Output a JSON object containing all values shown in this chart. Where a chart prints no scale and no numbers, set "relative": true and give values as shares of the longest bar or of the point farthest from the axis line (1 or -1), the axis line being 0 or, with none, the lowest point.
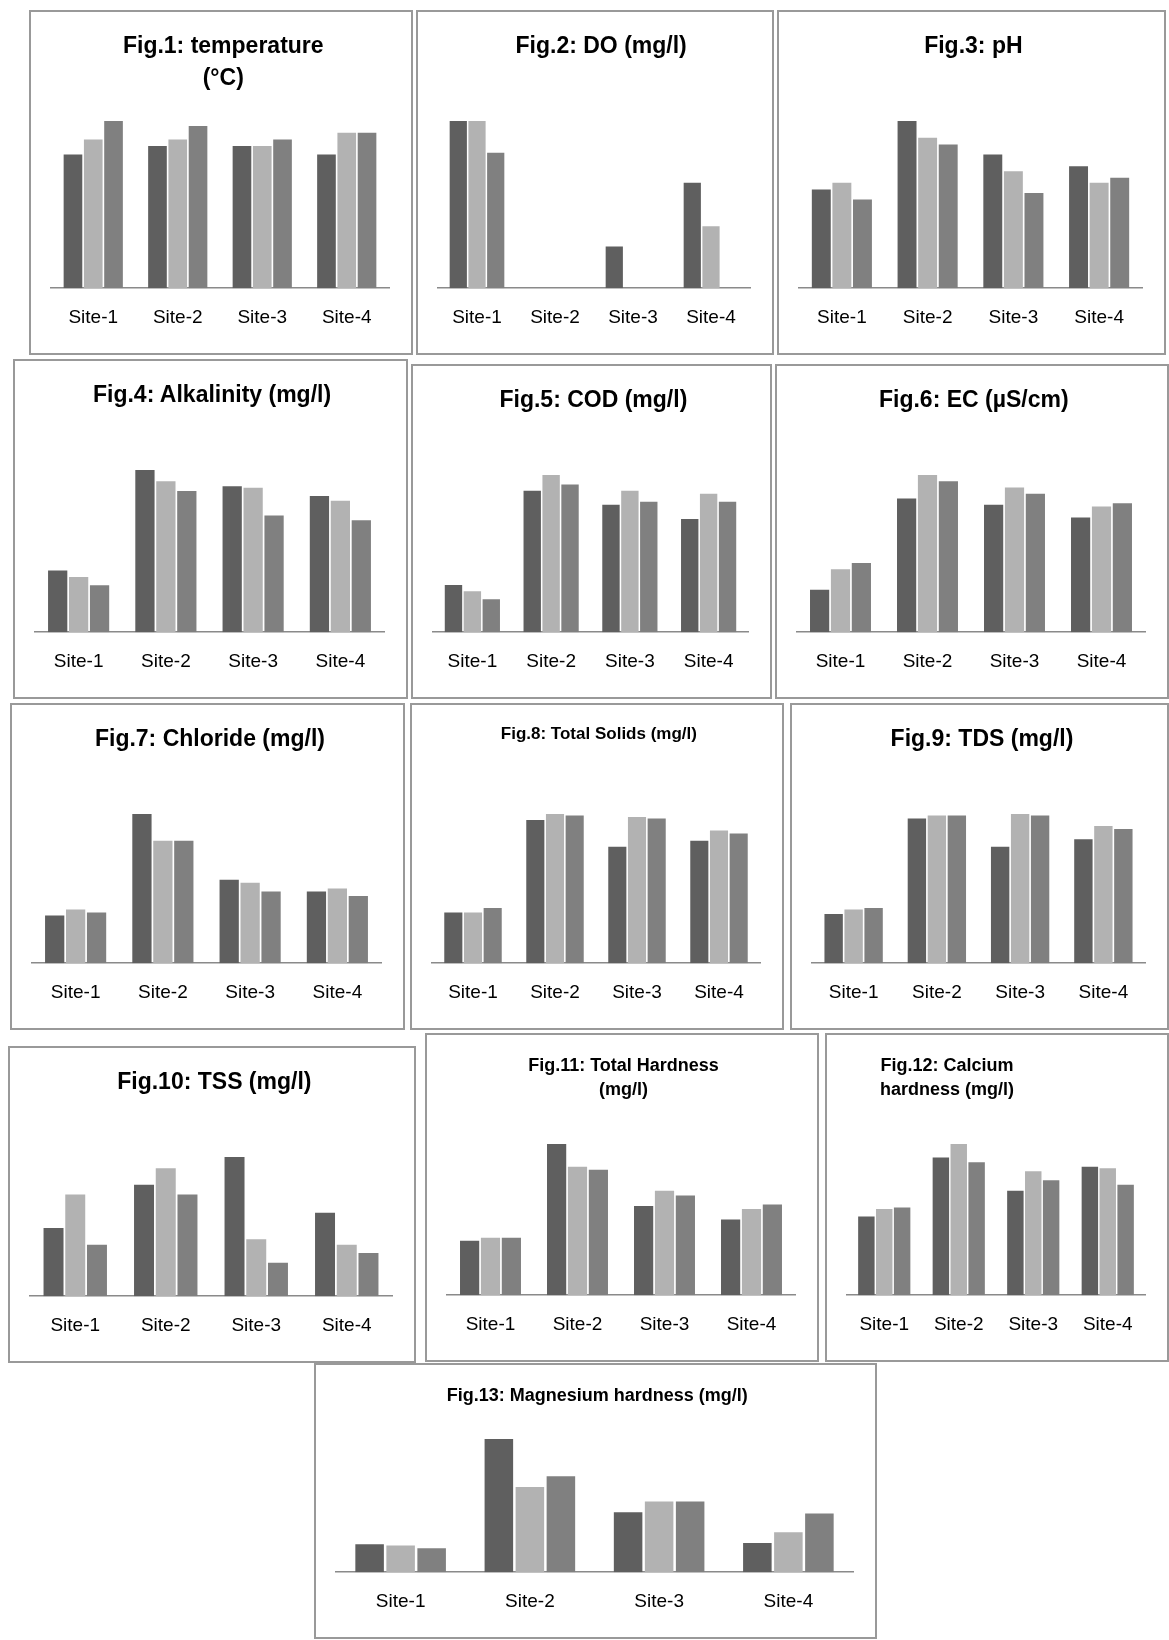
{
  "chart_data": [
    {
      "type": "bar",
      "title": "Fig.1: temperature (°C)",
      "relative": true,
      "categories": [
        "Site-1",
        "Site-2",
        "Site-3",
        "Site-4"
      ],
      "series": [
        {
          "color": "#5f5f5f",
          "values": [
            0.8,
            0.85,
            0.85,
            0.8
          ]
        },
        {
          "color": "#b2b2b2",
          "values": [
            0.89,
            0.89,
            0.85,
            0.93
          ]
        },
        {
          "color": "#808080",
          "values": [
            1,
            0.97,
            0.89,
            0.93
          ]
        }
      ]
    },
    {
      "type": "bar",
      "title": "Fig.2: DO (mg/l)",
      "relative": true,
      "categories": [
        "Site-1",
        "Site-2",
        "Site-3",
        "Site-4"
      ],
      "series": [
        {
          "color": "#5f5f5f",
          "values": [
            1,
            0,
            0.25,
            0.63
          ]
        },
        {
          "color": "#b2b2b2",
          "values": [
            1,
            0,
            0,
            0.37
          ]
        },
        {
          "color": "#808080",
          "values": [
            0.81,
            0,
            0,
            0
          ]
        }
      ]
    },
    {
      "type": "bar",
      "title": "Fig.3: pH",
      "relative": true,
      "categories": [
        "Site-1",
        "Site-2",
        "Site-3",
        "Site-4"
      ],
      "series": [
        {
          "color": "#5f5f5f",
          "values": [
            0.59,
            1,
            0.8,
            0.73
          ]
        },
        {
          "color": "#b2b2b2",
          "values": [
            0.63,
            0.9,
            0.7,
            0.63
          ]
        },
        {
          "color": "#808080",
          "values": [
            0.53,
            0.86,
            0.57,
            0.66
          ]
        }
      ]
    },
    {
      "type": "bar",
      "title": "Fig.4: Alkalinity (mg/l)",
      "relative": true,
      "categories": [
        "Site-1",
        "Site-2",
        "Site-3",
        "Site-4"
      ],
      "series": [
        {
          "color": "#5f5f5f",
          "values": [
            0.38,
            1,
            0.9,
            0.84
          ]
        },
        {
          "color": "#b2b2b2",
          "values": [
            0.34,
            0.93,
            0.89,
            0.81
          ]
        },
        {
          "color": "#808080",
          "values": [
            0.29,
            0.87,
            0.72,
            0.69
          ]
        }
      ]
    },
    {
      "type": "bar",
      "title": "Fig.5: COD (mg/l)",
      "relative": true,
      "categories": [
        "Site-1",
        "Site-2",
        "Site-3",
        "Site-4"
      ],
      "series": [
        {
          "color": "#5f5f5f",
          "values": [
            0.3,
            0.9,
            0.81,
            0.72
          ]
        },
        {
          "color": "#b2b2b2",
          "values": [
            0.26,
            1,
            0.9,
            0.88
          ]
        },
        {
          "color": "#808080",
          "values": [
            0.21,
            0.94,
            0.83,
            0.83
          ]
        }
      ]
    },
    {
      "type": "bar",
      "title": "Fig.6: EC (µS/cm)",
      "relative": true,
      "categories": [
        "Site-1",
        "Site-2",
        "Site-3",
        "Site-4"
      ],
      "series": [
        {
          "color": "#5f5f5f",
          "values": [
            0.27,
            0.85,
            0.81,
            0.73
          ]
        },
        {
          "color": "#b2b2b2",
          "values": [
            0.4,
            1,
            0.92,
            0.8
          ]
        },
        {
          "color": "#808080",
          "values": [
            0.44,
            0.96,
            0.88,
            0.82
          ]
        }
      ]
    },
    {
      "type": "bar",
      "title": "Fig.7: Chloride (mg/l)",
      "relative": true,
      "categories": [
        "Site-1",
        "Site-2",
        "Site-3",
        "Site-4"
      ],
      "series": [
        {
          "color": "#5f5f5f",
          "values": [
            0.32,
            1,
            0.56,
            0.48
          ]
        },
        {
          "color": "#b2b2b2",
          "values": [
            0.36,
            0.82,
            0.54,
            0.5
          ]
        },
        {
          "color": "#808080",
          "values": [
            0.34,
            0.82,
            0.48,
            0.45
          ]
        }
      ]
    },
    {
      "type": "bar",
      "title": "Fig.8: Total Solids (mg/l)",
      "relative": true,
      "categories": [
        "Site-1",
        "Site-2",
        "Site-3",
        "Site-4"
      ],
      "series": [
        {
          "color": "#5f5f5f",
          "values": [
            0.34,
            0.96,
            0.78,
            0.82
          ]
        },
        {
          "color": "#b2b2b2",
          "values": [
            0.34,
            1,
            0.98,
            0.89
          ]
        },
        {
          "color": "#808080",
          "values": [
            0.37,
            0.99,
            0.97,
            0.87
          ]
        }
      ]
    },
    {
      "type": "bar",
      "title": "Fig.9: TDS (mg/l)",
      "relative": true,
      "categories": [
        "Site-1",
        "Site-2",
        "Site-3",
        "Site-4"
      ],
      "series": [
        {
          "color": "#5f5f5f",
          "values": [
            0.33,
            0.97,
            0.78,
            0.83
          ]
        },
        {
          "color": "#b2b2b2",
          "values": [
            0.36,
            0.99,
            1,
            0.92
          ]
        },
        {
          "color": "#808080",
          "values": [
            0.37,
            0.99,
            0.99,
            0.9
          ]
        }
      ]
    },
    {
      "type": "bar",
      "title": "Fig.10: TSS (mg/l)",
      "relative": true,
      "categories": [
        "Site-1",
        "Site-2",
        "Site-3",
        "Site-4"
      ],
      "series": [
        {
          "color": "#5f5f5f",
          "values": [
            0.49,
            0.8,
            1,
            0.6
          ]
        },
        {
          "color": "#b2b2b2",
          "values": [
            0.73,
            0.92,
            0.41,
            0.37
          ]
        },
        {
          "color": "#808080",
          "values": [
            0.37,
            0.73,
            0.24,
            0.31
          ]
        }
      ]
    },
    {
      "type": "bar",
      "title": "Fig.11: Total Hardness (mg/l)",
      "relative": true,
      "categories": [
        "Site-1",
        "Site-2",
        "Site-3",
        "Site-4"
      ],
      "series": [
        {
          "color": "#5f5f5f",
          "values": [
            0.36,
            1,
            0.59,
            0.5
          ]
        },
        {
          "color": "#b2b2b2",
          "values": [
            0.38,
            0.85,
            0.69,
            0.57
          ]
        },
        {
          "color": "#808080",
          "values": [
            0.38,
            0.83,
            0.66,
            0.6
          ]
        }
      ]
    },
    {
      "type": "bar",
      "title": "Fig.12: Calcium hardness (mg/l)",
      "relative": true,
      "categories": [
        "Site-1",
        "Site-2",
        "Site-3",
        "Site-4"
      ],
      "series": [
        {
          "color": "#5f5f5f",
          "values": [
            0.52,
            0.91,
            0.69,
            0.85
          ]
        },
        {
          "color": "#b2b2b2",
          "values": [
            0.57,
            1,
            0.82,
            0.84
          ]
        },
        {
          "color": "#808080",
          "values": [
            0.58,
            0.88,
            0.76,
            0.73
          ]
        }
      ]
    },
    {
      "type": "bar",
      "title": "Fig.13: Magnesium hardness (mg/l)",
      "relative": true,
      "categories": [
        "Site-1",
        "Site-2",
        "Site-3",
        "Site-4"
      ],
      "series": [
        {
          "color": "#5f5f5f",
          "values": [
            0.21,
            1,
            0.45,
            0.22
          ]
        },
        {
          "color": "#b2b2b2",
          "values": [
            0.2,
            0.64,
            0.53,
            0.3
          ]
        },
        {
          "color": "#808080",
          "values": [
            0.18,
            0.72,
            0.53,
            0.44
          ]
        }
      ]
    }
  ]
}
